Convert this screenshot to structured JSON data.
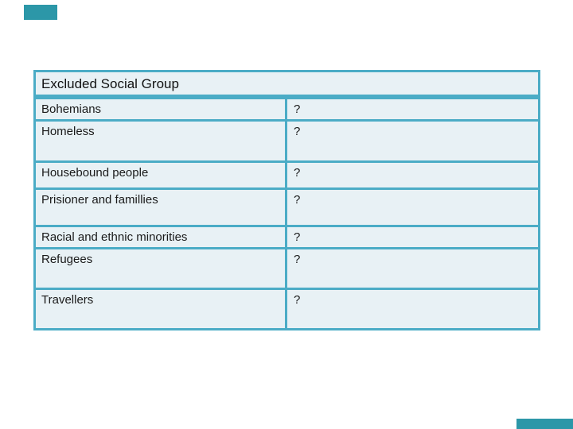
{
  "slide": {
    "decorations": {
      "accent_color": "#2c97a8"
    },
    "table": {
      "header": "Excluded Social Group",
      "border_color": "#4bacc6",
      "cell_fill": "#e8f1f5",
      "text_color": "#1a1a1a",
      "rows": [
        {
          "label": "Bohemians",
          "value": "?"
        },
        {
          "label": "Homeless",
          "value": "?"
        },
        {
          "label": "Housebound people",
          "value": "?"
        },
        {
          "label": "Prisioner and famillies",
          "value": "?"
        },
        {
          "label": "Racial and ethnic minorities",
          "value": "?"
        },
        {
          "label": "Refugees",
          "value": "?"
        },
        {
          "label": "Travellers",
          "value": "?"
        }
      ]
    }
  }
}
